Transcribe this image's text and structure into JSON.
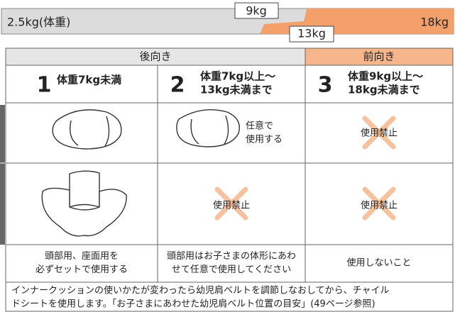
{
  "weight_scale": {
    "start": "2.5kg(体重)",
    "end": "18kg",
    "marker_9": "9kg",
    "marker_13": "13kg"
  },
  "table": {
    "header": {
      "rear": "後向き",
      "front": "前向き"
    },
    "stages": [
      {
        "number": "1",
        "label": [
          "体重7kg未満"
        ]
      },
      {
        "number": "2",
        "label": [
          "体重7kg以上～",
          "13kg未満まで"
        ]
      },
      {
        "number": "3",
        "label": [
          "体重9kg以上～",
          "18kg未満まで"
        ]
      }
    ],
    "head_cushion": {
      "col2_note": [
        "任意で",
        "使用する"
      ],
      "col3": "使用禁止"
    },
    "seat_cushion": {
      "col2": "使用禁止",
      "col3": "使用禁止"
    },
    "notes": [
      [
        "頭部用、座面用を",
        "必ずセットで使用する"
      ],
      [
        "頭部用はお子さまの体形にあわ",
        "せて任意で使用してください"
      ],
      [
        "使用しないこと"
      ]
    ],
    "footnote": [
      "インナークッションの使いかたが変わったら幼児肩ベルトを調節しなおしてから、チャイル",
      "ドシートを使用します。「お子さまにあわせた幼児肩ベルト位置の目安」(49ページ参照)"
    ]
  }
}
